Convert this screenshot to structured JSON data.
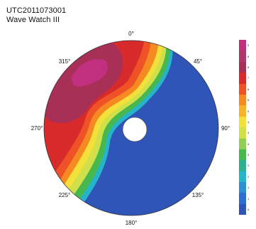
{
  "header": {
    "line1": "UTC2011073001",
    "line2": "Wave Watch III"
  },
  "map": {
    "type": "polar wave height map",
    "angle_labels": [
      {
        "deg": 0,
        "text": "0°"
      },
      {
        "deg": 45,
        "text": "45°"
      },
      {
        "deg": 90,
        "text": "90°"
      },
      {
        "deg": 135,
        "text": "135°"
      },
      {
        "deg": 180,
        "text": "180°"
      },
      {
        "deg": 225,
        "text": "225°"
      },
      {
        "deg": 270,
        "text": "270°"
      },
      {
        "deg": 315,
        "text": "315°"
      }
    ]
  },
  "colorbar": {
    "colors": [
      "#c0307f",
      "#b03868",
      "#a82f55",
      "#d82a2a",
      "#ee5226",
      "#f58a22",
      "#f8b22a",
      "#f4e03a",
      "#cfe04a",
      "#8fcf54",
      "#46b84e",
      "#2fb08c",
      "#28b4c8",
      "#2e8fd4",
      "#2d6ed0",
      "#2f55b8"
    ],
    "labels": [
      "9",
      "8",
      "8",
      "7",
      "6.",
      "6.",
      "5",
      "4.",
      "4",
      "3.",
      "3",
      "2.",
      "2",
      "1.",
      "1",
      "0."
    ]
  }
}
